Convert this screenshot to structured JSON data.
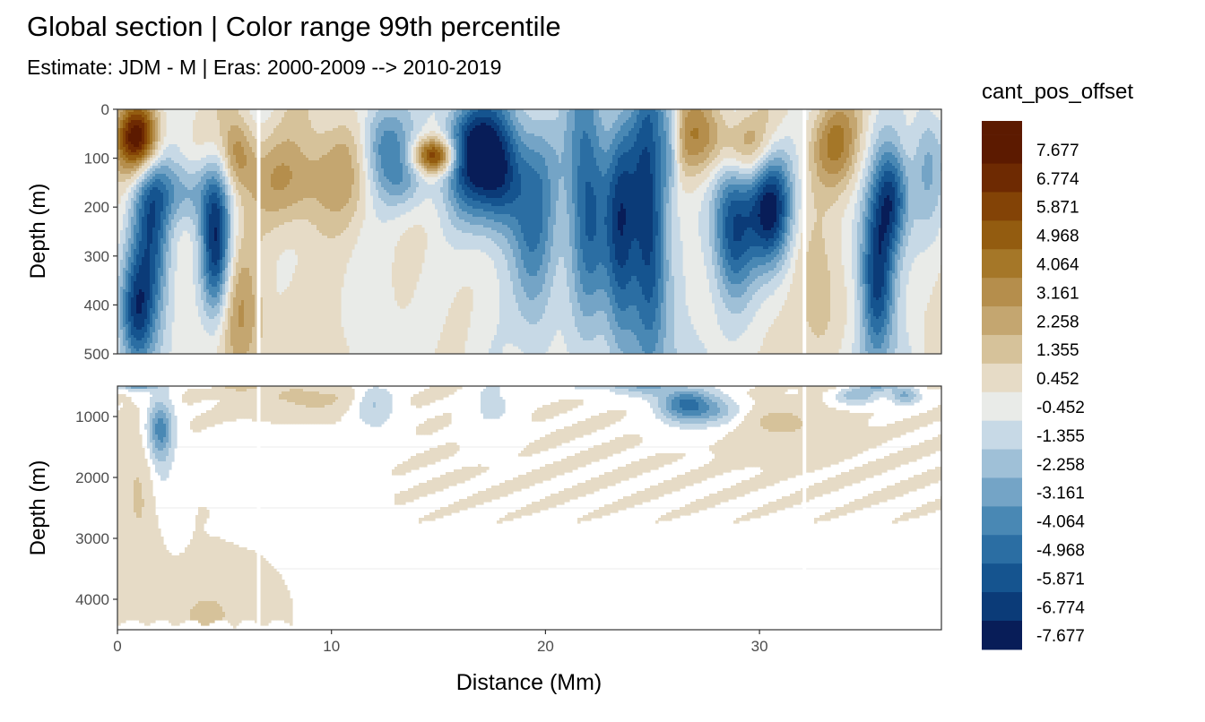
{
  "chart_data": {
    "type": "heatmap",
    "title": "Global section | Color range 99th percentile",
    "subtitle": "Estimate: JDM - M | Eras: 2000-2009 --> 2010-2019",
    "xlabel": "Distance (Mm)",
    "ylabel": "Depth (m)",
    "xlim": [
      0,
      38.5
    ],
    "x_ticks": [
      0,
      10,
      20,
      30
    ],
    "gaps_x": [
      6.6,
      32.1
    ],
    "panels": [
      {
        "name": "upper",
        "ylim": [
          0,
          500
        ],
        "y_ticks": [
          0,
          100,
          200,
          300,
          400,
          500
        ],
        "y_reversed": true
      },
      {
        "name": "lower",
        "ylim": [
          500,
          4500
        ],
        "y_ticks": [
          1000,
          2000,
          3000,
          4000
        ],
        "y_reversed": true
      }
    ],
    "legend": {
      "title": "cant_pos_offset",
      "position": "right",
      "labels": [
        "7.677",
        "6.774",
        "5.871",
        "4.968",
        "4.064",
        "3.161",
        "2.258",
        "1.355",
        "0.452",
        "-0.452",
        "-1.355",
        "-2.258",
        "-3.161",
        "-4.064",
        "-4.968",
        "-5.871",
        "-6.774",
        "-7.677"
      ],
      "colors": [
        "#5c1a00",
        "#6e2a02",
        "#834306",
        "#935c10",
        "#a57728",
        "#b58e4c",
        "#c4a670",
        "#d6c29a",
        "#e6dbc6",
        "#e9ebe8",
        "#c7d9e6",
        "#9fc0d7",
        "#74a4c6",
        "#4988b4",
        "#2b6ea3",
        "#15548f",
        "#0b3b78",
        "#081d58"
      ]
    },
    "grid": true
  }
}
